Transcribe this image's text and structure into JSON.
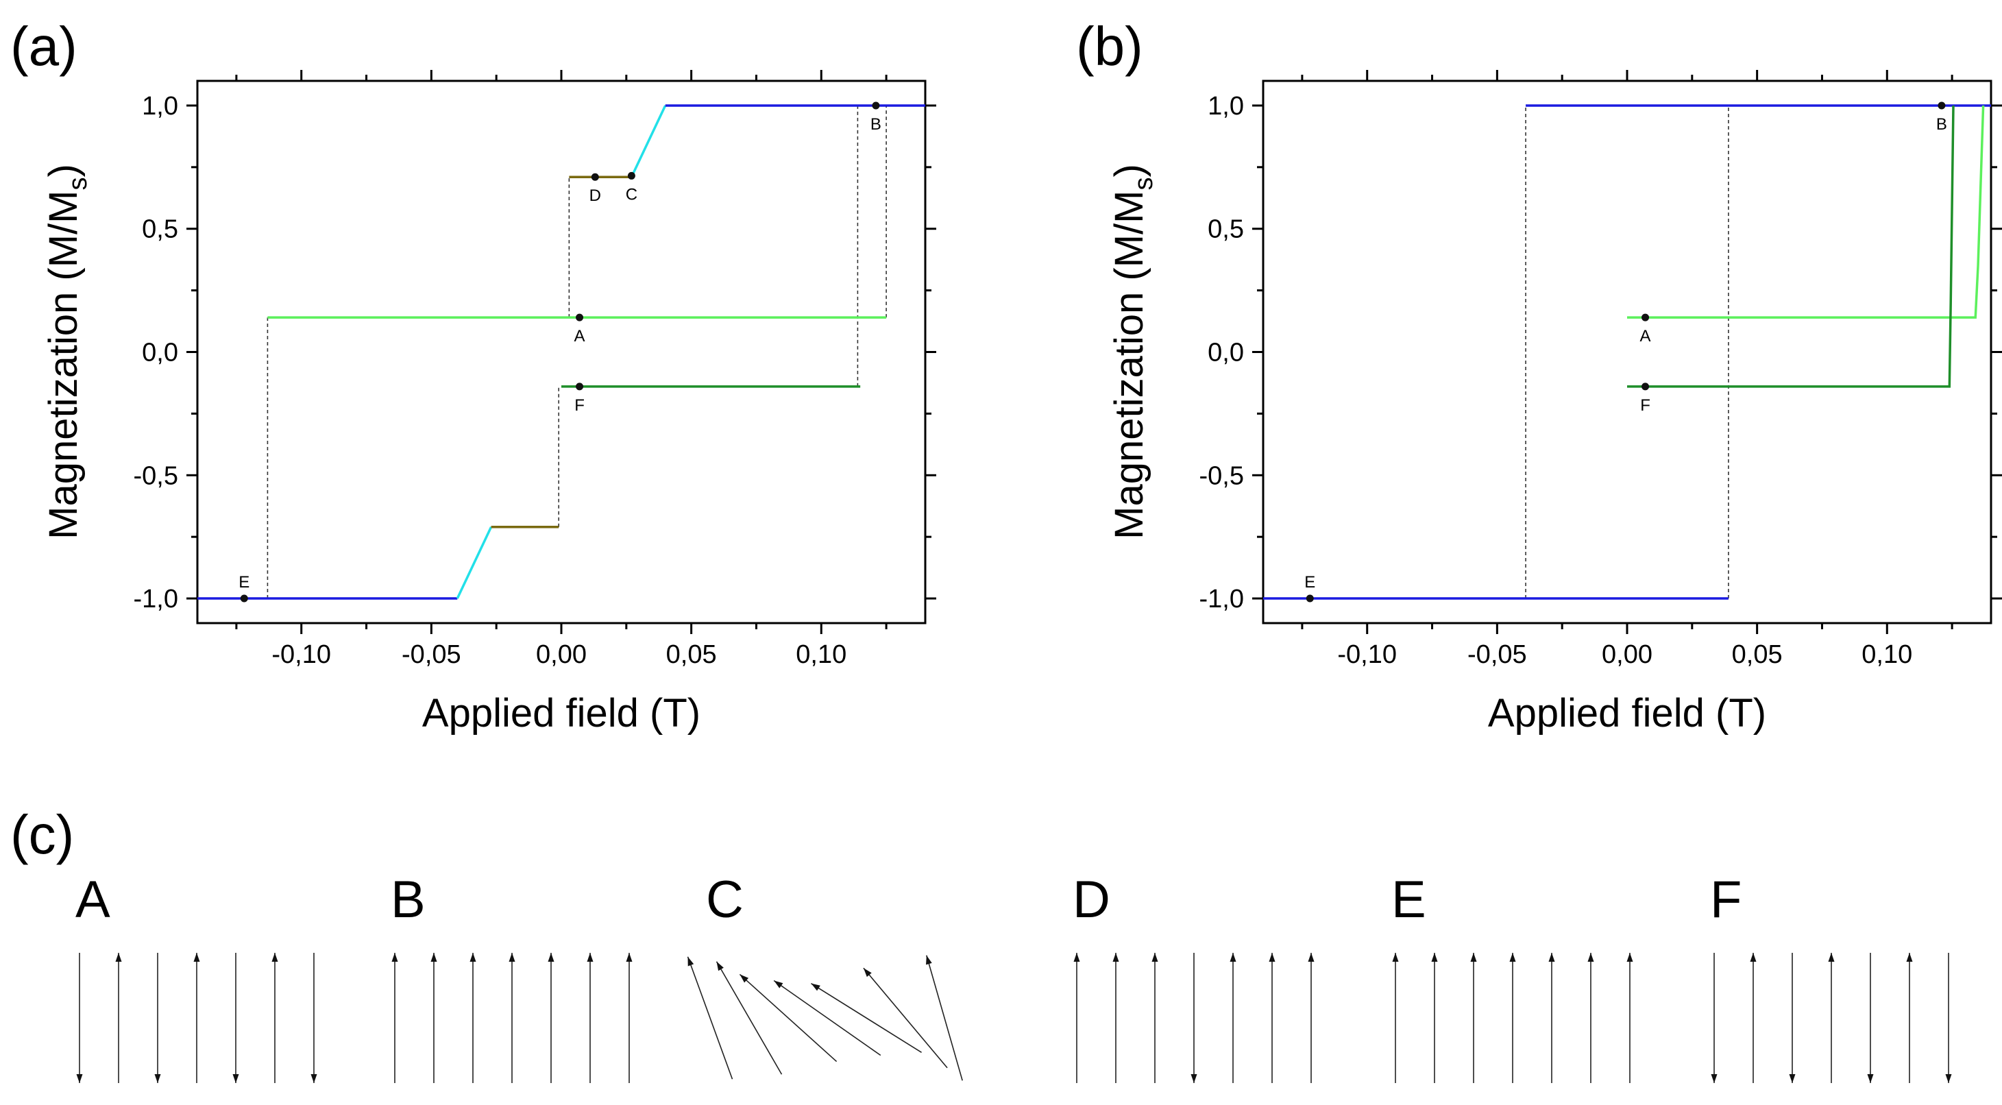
{
  "panels": [
    {
      "id": "a",
      "label": "(a)",
      "xlabel": "Applied field (T)",
      "ylabel_main": "Magnetization (M/M",
      "ylabel_sub": "s",
      "ylabel_close": ")",
      "xticks": [
        "-0,10",
        "-0,05",
        "0,00",
        "0,05",
        "0,10"
      ],
      "yticks": [
        "-1,0",
        "-0,5",
        "0,0",
        "0,5",
        "1,0"
      ]
    },
    {
      "id": "b",
      "label": "(b)",
      "xlabel": "Applied field (T)",
      "ylabel_main": "Magnetization (M/M",
      "ylabel_sub": "s",
      "ylabel_close": ")",
      "xticks": [
        "-0,10",
        "-0,05",
        "0,00",
        "0,05",
        "0,10"
      ],
      "yticks": [
        "-1,0",
        "-0,5",
        "0,0",
        "0,5",
        "1,0"
      ]
    }
  ],
  "colors": {
    "blue": "#1b1be0",
    "cyan": "#22e0e8",
    "olive": "#7a6a10",
    "light_green": "#5cf05c",
    "dark_green": "#1f8f2a",
    "dash": "#333333",
    "point": "#111111"
  },
  "chart_data": [
    {
      "type": "line",
      "panel": "a",
      "title": "(a)",
      "xlabel": "Applied field (T)",
      "ylabel": "Magnetization (M/Ms)",
      "xlim": [
        -0.14,
        0.14
      ],
      "ylim": [
        -1.1,
        1.1
      ],
      "xticks": [
        -0.1,
        -0.05,
        0.0,
        0.05,
        0.1
      ],
      "yticks": [
        -1.0,
        -0.5,
        0.0,
        0.5,
        1.0
      ],
      "series": [
        {
          "name": "blue-negative-saturation",
          "color": "blue",
          "x": [
            -0.14,
            -0.04
          ],
          "y": [
            -1.0,
            -1.0
          ]
        },
        {
          "name": "cyan-negative-rise",
          "color": "cyan",
          "x": [
            -0.04,
            -0.027
          ],
          "y": [
            -1.0,
            -0.71
          ]
        },
        {
          "name": "olive-negative-plateau",
          "color": "olive",
          "x": [
            -0.027,
            -0.001
          ],
          "y": [
            -0.71,
            -0.71
          ]
        },
        {
          "name": "olive-positive-plateau",
          "color": "olive",
          "x": [
            0.003,
            0.027
          ],
          "y": [
            0.71,
            0.71
          ]
        },
        {
          "name": "cyan-positive-rise",
          "color": "cyan",
          "x": [
            0.027,
            0.04
          ],
          "y": [
            0.71,
            1.0
          ]
        },
        {
          "name": "blue-positive-saturation",
          "color": "blue",
          "x": [
            0.04,
            0.14
          ],
          "y": [
            1.0,
            1.0
          ]
        },
        {
          "name": "light-green-A-branch",
          "color": "light_green",
          "x": [
            -0.113,
            0.125
          ],
          "y": [
            0.14,
            0.14
          ]
        },
        {
          "name": "dark-green-F-branch",
          "color": "dark_green",
          "x": [
            0.0,
            0.115
          ],
          "y": [
            -0.14,
            -0.14
          ]
        }
      ],
      "dashed_lines": [
        {
          "x": [
            -0.113,
            -0.113
          ],
          "y": [
            -1.0,
            0.14
          ]
        },
        {
          "x": [
            -0.001,
            -0.001
          ],
          "y": [
            -0.71,
            -0.14
          ]
        },
        {
          "x": [
            0.003,
            0.003
          ],
          "y": [
            0.14,
            0.71
          ]
        },
        {
          "x": [
            0.114,
            0.114
          ],
          "y": [
            -0.14,
            1.0
          ]
        },
        {
          "x": [
            0.125,
            0.125
          ],
          "y": [
            0.14,
            1.0
          ]
        }
      ],
      "points": [
        {
          "label": "A",
          "x": 0.007,
          "y": 0.14,
          "label_pos": "below"
        },
        {
          "label": "B",
          "x": 0.121,
          "y": 1.0,
          "label_pos": "below"
        },
        {
          "label": "C",
          "x": 0.027,
          "y": 0.715,
          "label_pos": "below"
        },
        {
          "label": "D",
          "x": 0.013,
          "y": 0.71,
          "label_pos": "below"
        },
        {
          "label": "E",
          "x": -0.122,
          "y": -1.0,
          "label_pos": "above"
        },
        {
          "label": "F",
          "x": 0.007,
          "y": -0.14,
          "label_pos": "below"
        }
      ]
    },
    {
      "type": "line",
      "panel": "b",
      "title": "(b)",
      "xlabel": "Applied field (T)",
      "ylabel": "Magnetization (M/Ms)",
      "xlim": [
        -0.14,
        0.14
      ],
      "ylim": [
        -1.1,
        1.1
      ],
      "xticks": [
        -0.1,
        -0.05,
        0.0,
        0.05,
        0.1
      ],
      "yticks": [
        -1.0,
        -0.5,
        0.0,
        0.5,
        1.0
      ],
      "series": [
        {
          "name": "blue-lower",
          "color": "blue",
          "x": [
            -0.14,
            0.039
          ],
          "y": [
            -1.0,
            -1.0
          ]
        },
        {
          "name": "blue-upper",
          "color": "blue",
          "x": [
            -0.039,
            0.14
          ],
          "y": [
            1.0,
            1.0
          ]
        },
        {
          "name": "light-green-A-branch",
          "color": "light_green",
          "x": [
            0.0,
            0.134,
            0.135,
            0.137
          ],
          "y": [
            0.14,
            0.14,
            0.35,
            1.0
          ]
        },
        {
          "name": "dark-green-F-branch",
          "color": "dark_green",
          "x": [
            0.0,
            0.124,
            0.1245,
            0.1255
          ],
          "y": [
            -0.14,
            -0.14,
            0.2,
            1.0
          ]
        }
      ],
      "dashed_lines": [
        {
          "x": [
            -0.039,
            -0.039
          ],
          "y": [
            -1.0,
            1.0
          ]
        },
        {
          "x": [
            0.039,
            0.039
          ],
          "y": [
            -1.0,
            1.0
          ]
        }
      ],
      "points": [
        {
          "label": "A",
          "x": 0.007,
          "y": 0.14,
          "label_pos": "below"
        },
        {
          "label": "B",
          "x": 0.121,
          "y": 1.0,
          "label_pos": "below"
        },
        {
          "label": "E",
          "x": -0.122,
          "y": -1.0,
          "label_pos": "above"
        },
        {
          "label": "F",
          "x": 0.007,
          "y": -0.14,
          "label_pos": "below"
        }
      ]
    }
  ],
  "configurations": {
    "label": "(c)",
    "states": [
      {
        "name": "A",
        "angles_deg": [
          180,
          0,
          180,
          0,
          180,
          0,
          180
        ]
      },
      {
        "name": "B",
        "angles_deg": [
          0,
          0,
          0,
          0,
          0,
          0,
          0
        ]
      },
      {
        "name": "C",
        "angles_deg": [
          -20,
          -30,
          -48,
          -55,
          -58,
          -40,
          -16
        ]
      },
      {
        "name": "D",
        "angles_deg": [
          0,
          0,
          0,
          180,
          0,
          0,
          0
        ]
      },
      {
        "name": "E",
        "angles_deg": [
          0,
          0,
          0,
          0,
          0,
          0,
          0
        ]
      },
      {
        "name": "F",
        "angles_deg": [
          180,
          0,
          180,
          0,
          180,
          0,
          180
        ]
      }
    ]
  }
}
